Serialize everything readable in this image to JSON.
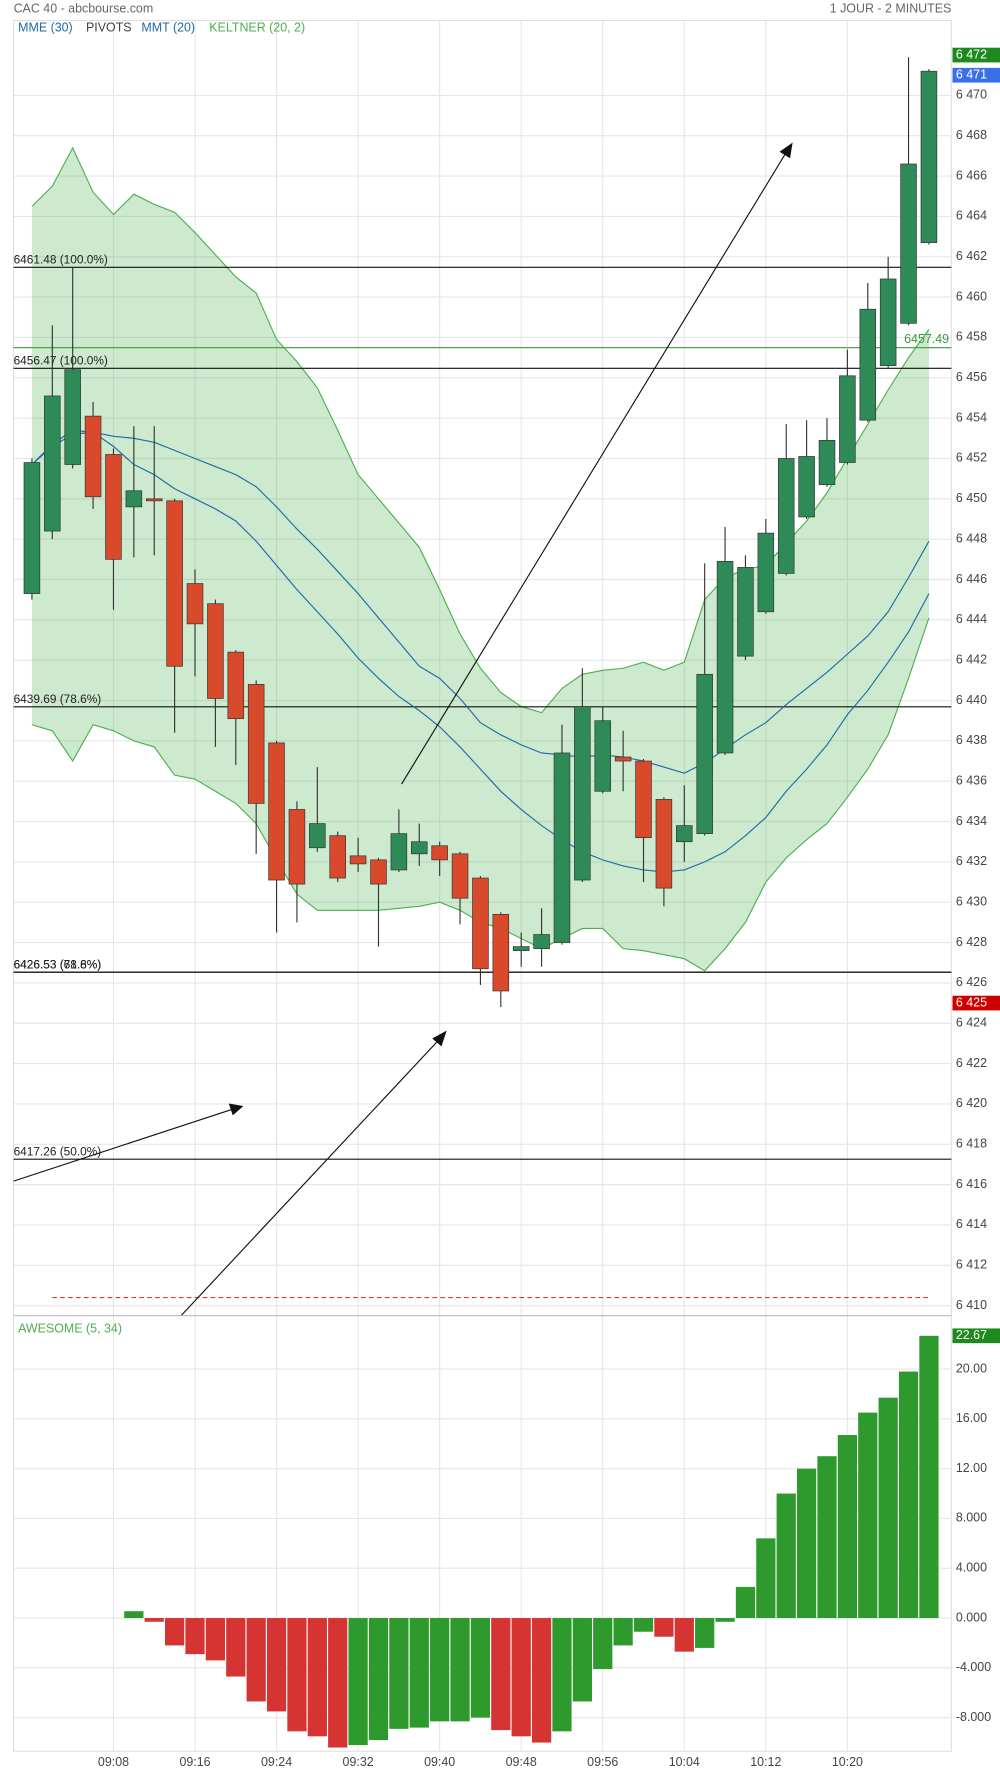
{
  "header": {
    "title": "CAC 40 - abcbourse.com",
    "period": "1 JOUR - 2 MINUTES"
  },
  "chart_data": [
    {
      "type": "candlestick",
      "categories": [
        null,
        null,
        null,
        null,
        "09:08",
        null,
        null,
        null,
        "09:16",
        null,
        null,
        null,
        "09:24",
        null,
        null,
        null,
        "09:32",
        null,
        null,
        null,
        "09:40",
        null,
        null,
        null,
        "09:48",
        null,
        null,
        null,
        "09:56",
        null,
        null,
        null,
        "10:04",
        null,
        null,
        null,
        "10:12",
        null,
        null,
        null,
        "10:20",
        null,
        null,
        null,
        null
      ],
      "open": [
        6445.3,
        6448.4,
        6451.7,
        6454.1,
        6452.2,
        6449.6,
        6450.0,
        6449.9,
        6445.8,
        6444.8,
        6442.4,
        6440.8,
        6437.9,
        6434.6,
        6432.7,
        6433.3,
        6432.3,
        6432.1,
        6431.6,
        6432.4,
        6432.8,
        6432.4,
        6431.2,
        6429.4,
        6427.6,
        6427.7,
        6428.0,
        6431.1,
        6435.5,
        6437.2,
        6437.0,
        6435.1,
        6433.0,
        6433.4,
        6437.4,
        6442.2,
        6444.4,
        6446.3,
        6449.1,
        6450.7,
        6451.8,
        6453.9,
        6456.6,
        6458.7,
        6462.7
      ],
      "high": [
        6452.0,
        6458.6,
        6461.5,
        6454.8,
        6452.5,
        6453.6,
        6453.6,
        6450.0,
        6446.5,
        6445.0,
        6442.5,
        6441.0,
        6438.0,
        6435.0,
        6436.7,
        6433.5,
        6433.2,
        6432.2,
        6434.6,
        6433.9,
        6433.0,
        6432.5,
        6431.3,
        6429.5,
        6428.5,
        6429.7,
        6438.8,
        6441.6,
        6439.7,
        6438.5,
        6437.1,
        6435.2,
        6435.8,
        6446.8,
        6448.6,
        6447.2,
        6449.0,
        6453.7,
        6453.9,
        6454.0,
        6457.4,
        6460.7,
        6462.0,
        6471.9,
        6471.3
      ],
      "low": [
        6445.0,
        6448.0,
        6451.5,
        6449.5,
        6444.5,
        6447.1,
        6447.2,
        6438.4,
        6441.2,
        6437.7,
        6436.8,
        6432.4,
        6428.5,
        6429.0,
        6432.5,
        6431.0,
        6431.5,
        6427.8,
        6431.5,
        6431.8,
        6431.3,
        6428.9,
        6425.9,
        6424.8,
        6426.8,
        6426.8,
        6427.9,
        6431.0,
        6435.4,
        6435.5,
        6431.0,
        6429.8,
        6432.0,
        6433.3,
        6437.3,
        6442.0,
        6444.3,
        6446.2,
        6449.0,
        6450.6,
        6451.7,
        6453.8,
        6456.5,
        6458.6,
        6462.6
      ],
      "close": [
        6451.8,
        6455.1,
        6456.4,
        6450.1,
        6447.0,
        6450.4,
        6449.9,
        6441.7,
        6443.8,
        6440.1,
        6439.1,
        6434.9,
        6431.1,
        6430.9,
        6433.9,
        6431.2,
        6431.9,
        6430.9,
        6433.4,
        6433.0,
        6432.1,
        6430.2,
        6426.7,
        6425.6,
        6427.8,
        6428.4,
        6437.4,
        6439.7,
        6439.0,
        6437.0,
        6433.2,
        6430.7,
        6433.8,
        6441.3,
        6446.9,
        6446.6,
        6448.3,
        6452.0,
        6452.1,
        6452.9,
        6456.1,
        6459.4,
        6460.9,
        6466.6,
        6471.2
      ],
      "up_color": "#2e8b57",
      "down_color": "#d94a2c",
      "series": [
        {
          "name": "MME (30)",
          "color": "#1f6aa5",
          "values": [
            6451.7,
            6452.6,
            6453.2,
            6453.3,
            6453.1,
            6453.0,
            6452.8,
            6452.4,
            6452.0,
            6451.6,
            6451.2,
            6450.6,
            6449.6,
            6448.5,
            6447.5,
            6446.4,
            6445.3,
            6444.1,
            6442.9,
            6441.7,
            6441.1,
            6440.1,
            6438.9,
            6438.3,
            6437.8,
            6437.4,
            6437.3,
            6437.2,
            6437.3,
            6437.2,
            6437.0,
            6436.7,
            6436.4,
            6436.9,
            6437.6,
            6438.3,
            6438.9,
            6439.8,
            6440.6,
            6441.4,
            6442.3,
            6443.2,
            6444.4,
            6446.1,
            6447.9
          ]
        },
        {
          "name": "MMT (20)",
          "color": "#1f6aa5",
          "values": [
            6451.7,
            6452.7,
            6453.4,
            6453.3,
            6452.6,
            6451.7,
            6451.2,
            6450.5,
            6450.0,
            6449.5,
            6448.9,
            6447.9,
            6446.7,
            6445.5,
            6444.4,
            6443.3,
            6442.1,
            6441.1,
            6440.2,
            6439.5,
            6438.7,
            6437.7,
            6436.6,
            6435.5,
            6434.6,
            6433.8,
            6433.1,
            6432.5,
            6432.1,
            6431.8,
            6431.6,
            6431.5,
            6431.6,
            6432.0,
            6432.5,
            6433.3,
            6434.2,
            6435.5,
            6436.6,
            6437.8,
            6439.3,
            6440.5,
            6441.9,
            6443.4,
            6445.3
          ]
        }
      ],
      "keltner": {
        "name": "KELTNER (20, 2)",
        "color": "#4caf50",
        "upper": [
          6464.5,
          6465.5,
          6467.4,
          6465.2,
          6464.1,
          6465.1,
          6464.6,
          6464.2,
          6463.2,
          6462.1,
          6461.0,
          6460.2,
          6457.9,
          6456.8,
          6455.5,
          6453.4,
          6451.2,
          6450.0,
          6448.8,
          6447.6,
          6445.5,
          6443.3,
          6441.6,
          6440.4,
          6439.7,
          6439.4,
          6440.6,
          6441.3,
          6441.5,
          6441.6,
          6441.9,
          6441.5,
          6441.9,
          6445.0,
          6446.1,
          6446.5,
          6446.7,
          6447.8,
          6448.9,
          6450.3,
          6452.0,
          6453.7,
          6455.4,
          6457.0,
          6458.4
        ],
        "lower": [
          6438.8,
          6438.5,
          6437.0,
          6438.8,
          6438.5,
          6438.0,
          6437.7,
          6436.3,
          6436.1,
          6435.5,
          6434.9,
          6433.9,
          6432.1,
          6430.4,
          6429.6,
          6429.6,
          6429.6,
          6429.6,
          6429.7,
          6429.8,
          6430.0,
          6429.6,
          6429.0,
          6428.7,
          6428.2,
          6427.7,
          6428.2,
          6428.7,
          6428.7,
          6427.7,
          6427.6,
          6427.4,
          6427.2,
          6426.6,
          6427.7,
          6429.0,
          6431.0,
          6432.2,
          6433.1,
          6433.9,
          6435.2,
          6436.6,
          6438.3,
          6441.1,
          6444.1
        ]
      },
      "pivots": {
        "name": "PIVOTS",
        "levels": [
          {
            "value": 6461.48,
            "label": "6461.48 (100.0%)"
          },
          {
            "value": 6456.47,
            "label": "6456.47 (100.0%)"
          },
          {
            "value": 6439.69,
            "label": "6439.69 (78.6%)"
          },
          {
            "value": 6426.53,
            "label": "6426.53 (61.8%)"
          },
          {
            "value": 6426.53,
            "label": "6426.53 (78.6%)"
          },
          {
            "value": 6417.26,
            "label": "6417.26 (50.0%)"
          }
        ]
      },
      "marker_lines": [
        {
          "value": 6457.49,
          "label": "6457.49",
          "color": "#3a9a3a"
        }
      ],
      "dashed_line": {
        "value": 6410.4,
        "color": "#e03030"
      },
      "price_tags": [
        {
          "value": 6472,
          "label": "6 472",
          "color": "#1e8a1e"
        },
        {
          "value": 6471,
          "label": "6 471",
          "color": "#3b6fe8"
        },
        {
          "value": 6425,
          "label": "6 425",
          "color": "#cc0000"
        }
      ],
      "ylim": [
        6409.5,
        6472.2
      ],
      "yticks": [
        {
          "value": 6410,
          "label": "6 410"
        },
        {
          "value": 6412,
          "label": "6 412"
        },
        {
          "value": 6414,
          "label": "6 414"
        },
        {
          "value": 6416,
          "label": "6 416"
        },
        {
          "value": 6418,
          "label": "6 418"
        },
        {
          "value": 6420,
          "label": "6 420"
        },
        {
          "value": 6422,
          "label": "6 422"
        },
        {
          "value": 6424,
          "label": "6 424"
        },
        {
          "value": 6426,
          "label": "6 426"
        },
        {
          "value": 6428,
          "label": "6 428"
        },
        {
          "value": 6430,
          "label": "6 430"
        },
        {
          "value": 6432,
          "label": "6 432"
        },
        {
          "value": 6434,
          "label": "6 434"
        },
        {
          "value": 6436,
          "label": "6 436"
        },
        {
          "value": 6438,
          "label": "6 438"
        },
        {
          "value": 6440,
          "label": "6 440"
        },
        {
          "value": 6442,
          "label": "6 442"
        },
        {
          "value": 6444,
          "label": "6 444"
        },
        {
          "value": 6446,
          "label": "6 446"
        },
        {
          "value": 6448,
          "label": "6 448"
        },
        {
          "value": 6450,
          "label": "6 450"
        },
        {
          "value": 6452,
          "label": "6 452"
        },
        {
          "value": 6454,
          "label": "6 454"
        },
        {
          "value": 6456,
          "label": "6 456"
        },
        {
          "value": 6458,
          "label": "6 458"
        },
        {
          "value": 6460,
          "label": "6 460"
        },
        {
          "value": 6462,
          "label": "6 462"
        },
        {
          "value": 6464,
          "label": "6 464"
        },
        {
          "value": 6466,
          "label": "6 466"
        },
        {
          "value": 6468,
          "label": "6 468"
        },
        {
          "value": 6470,
          "label": "6 470"
        }
      ],
      "grid": true
    },
    {
      "type": "bar",
      "title": "AWESOME (5, 34)",
      "color": "#3a9a3a",
      "values": [
        null,
        null,
        null,
        null,
        null,
        0.55,
        -0.3,
        -2.2,
        -2.9,
        -3.4,
        -4.7,
        -6.7,
        -7.5,
        -9.1,
        -9.5,
        -10.4,
        -10.2,
        -9.8,
        -8.9,
        -8.8,
        -8.3,
        -8.3,
        -8.0,
        -9.0,
        -9.5,
        -10.0,
        -9.1,
        -6.7,
        -4.1,
        -2.2,
        -1.1,
        -1.5,
        -2.7,
        -2.4,
        -0.3,
        2.5,
        6.4,
        10.0,
        12.0,
        13.0,
        14.7,
        16.5,
        17.7,
        19.8,
        22.67
      ],
      "up_color": "#2e9a2e",
      "down_color": "#d63333",
      "value_tags": [
        {
          "value": 22.67,
          "label": "22.67",
          "color": "#1e8a1e"
        }
      ],
      "ylim": [
        -10.7,
        24.1
      ],
      "yticks": [
        {
          "value": -8,
          "label": "-8.000"
        },
        {
          "value": -4,
          "label": "-4.000"
        },
        {
          "value": 0,
          "label": "0.000"
        },
        {
          "value": 4,
          "label": "4.000"
        },
        {
          "value": 8,
          "label": "8.000"
        },
        {
          "value": 12,
          "label": "12.00"
        },
        {
          "value": 16,
          "label": "16.00"
        },
        {
          "value": 20,
          "label": "20.00"
        }
      ],
      "grid": true
    }
  ]
}
